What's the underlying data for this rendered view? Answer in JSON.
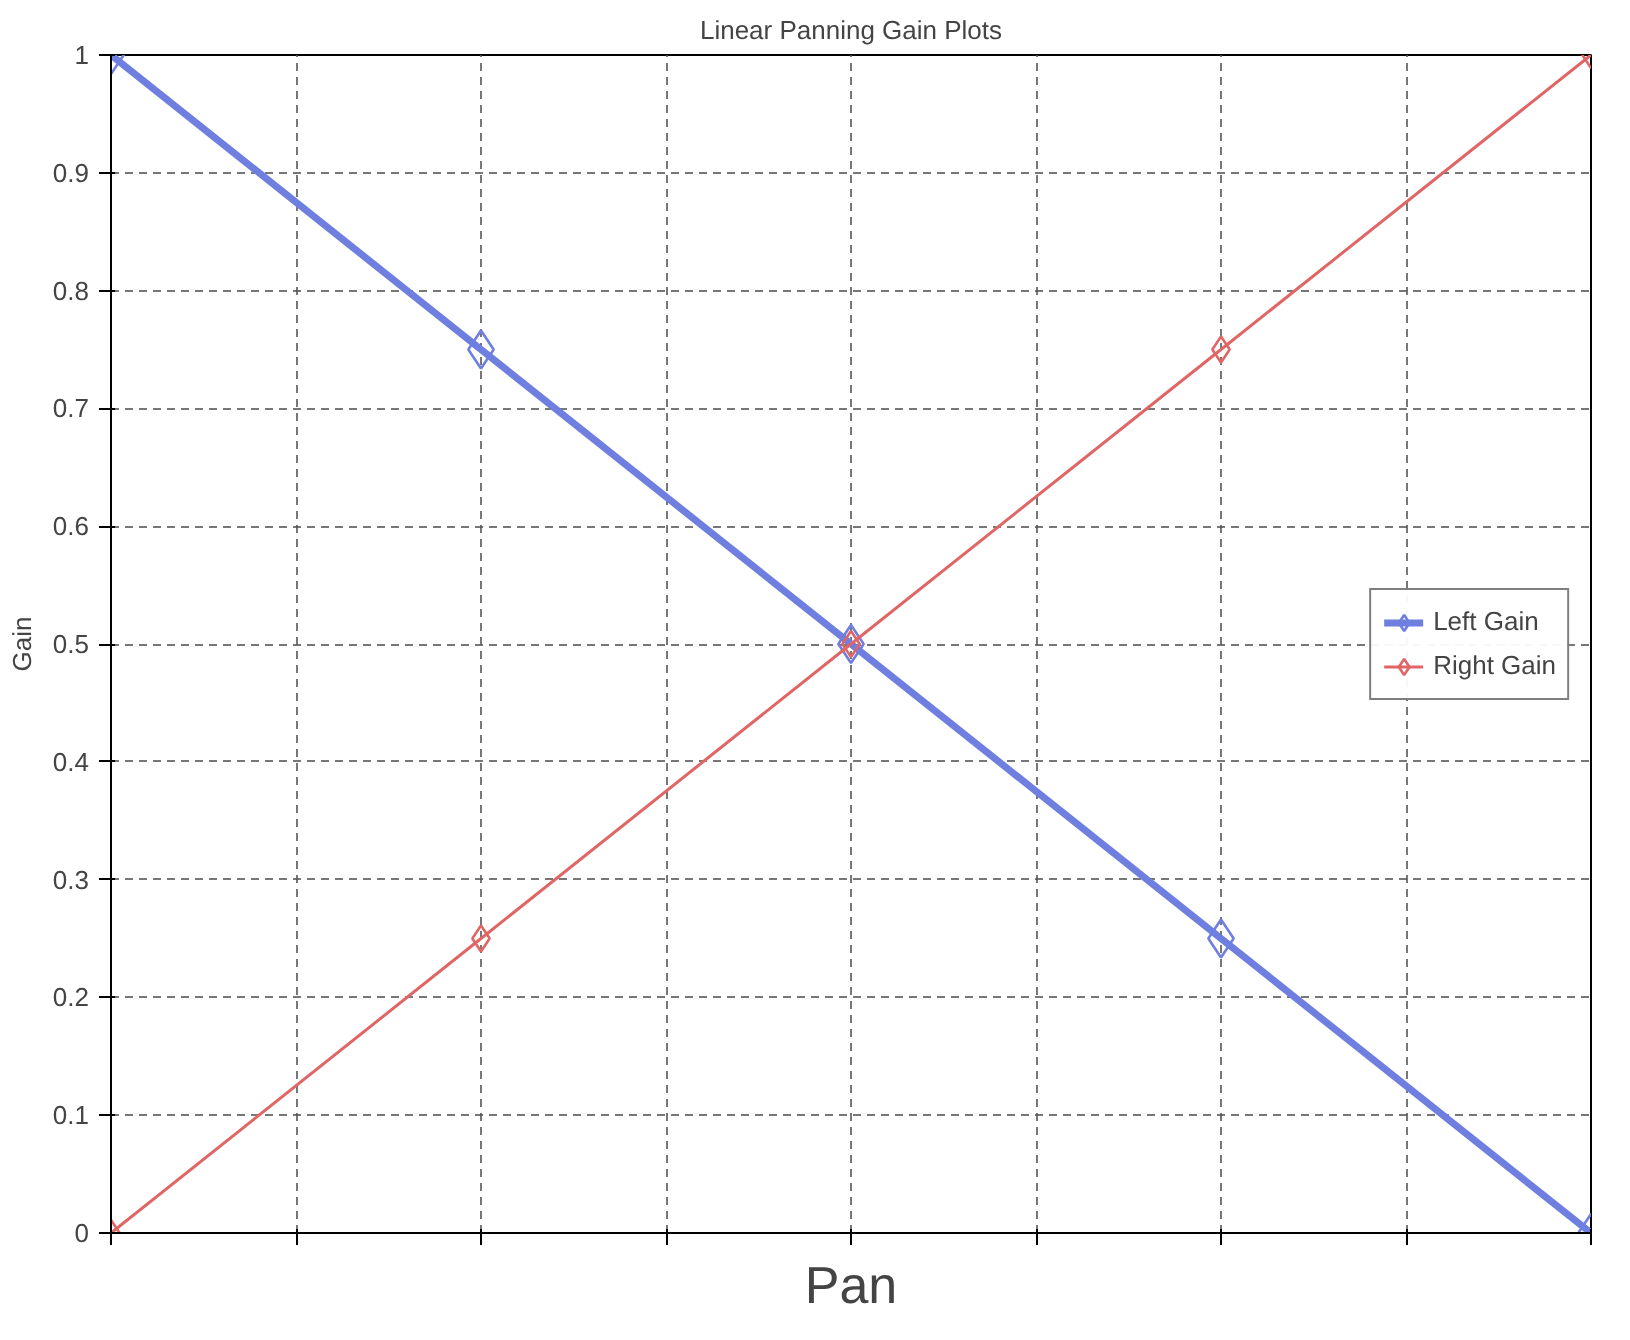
{
  "chart_data": {
    "type": "line",
    "title": "Linear Panning Gain Plots",
    "xlabel": "Pan",
    "ylabel": "Gain",
    "categories": [
      null,
      null,
      null,
      null,
      null
    ],
    "series": [
      {
        "name": "Left Gain",
        "color": "#6f7fe0",
        "values": [
          1,
          0.75,
          0.5,
          0.25,
          0
        ]
      },
      {
        "name": "Right Gain",
        "color": "#e06666",
        "values": [
          0,
          0.25,
          0.5,
          0.75,
          1
        ]
      }
    ],
    "ylim": [
      0,
      1
    ],
    "yticks": [
      0,
      0.1,
      0.2,
      0.3,
      0.4,
      0.5,
      0.6,
      0.7,
      0.8,
      0.9,
      1
    ],
    "grid": true,
    "legend": "right",
    "marker": "diamond",
    "line_style": "solid"
  }
}
